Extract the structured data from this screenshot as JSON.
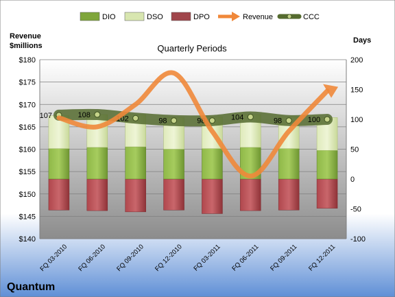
{
  "company": "Quantum",
  "chart_data": {
    "type": "bar",
    "title": "Quarterly Periods",
    "y_left_label_line1": "Revenue",
    "y_left_label_line2": "$millions",
    "y_right_label": "Days",
    "categories": [
      "FQ 03-2010",
      "FQ 06-2010",
      "FQ 09-2010",
      "FQ 12-2010",
      "FQ 03-2011",
      "FQ 06-2011",
      "FQ 09-2011",
      "FQ 12-2011"
    ],
    "y_left_range": [
      140,
      180
    ],
    "y_left_ticks": [
      "$140",
      "$145",
      "$150",
      "$155",
      "$160",
      "$165",
      "$170",
      "$175",
      "$180"
    ],
    "y_right_range": [
      -100,
      200
    ],
    "y_right_ticks": [
      "-100",
      "-50",
      "0",
      "50",
      "100",
      "150",
      "200"
    ],
    "legend_position": "top",
    "series": [
      {
        "name": "DIO",
        "axis": "right",
        "kind": "stacked-bar",
        "color": "#7fa63b",
        "values": [
          51,
          53,
          54,
          50,
          51,
          53,
          51,
          48
        ]
      },
      {
        "name": "DSO",
        "axis": "right",
        "kind": "stacked-bar",
        "color": "#d8e6b0",
        "values": [
          55,
          55,
          54,
          53,
          53,
          55,
          53,
          55
        ]
      },
      {
        "name": "DPO",
        "axis": "right",
        "kind": "negative-bar",
        "color": "#a0464b",
        "values": [
          -52,
          -53,
          -55,
          -52,
          -58,
          -53,
          -52,
          -49
        ]
      },
      {
        "name": "Revenue",
        "axis": "left",
        "kind": "smooth-line",
        "color": "#f0883a",
        "values": [
          167,
          165,
          170,
          177,
          164,
          154,
          164,
          173
        ]
      },
      {
        "name": "CCC",
        "axis": "right",
        "kind": "line-markers",
        "color": "#556b2f",
        "values": [
          107,
          108,
          102,
          98,
          98,
          104,
          98,
          100
        ],
        "labels": [
          "107",
          "108",
          "102",
          "98",
          "98",
          "104",
          "98",
          "100"
        ]
      }
    ]
  }
}
